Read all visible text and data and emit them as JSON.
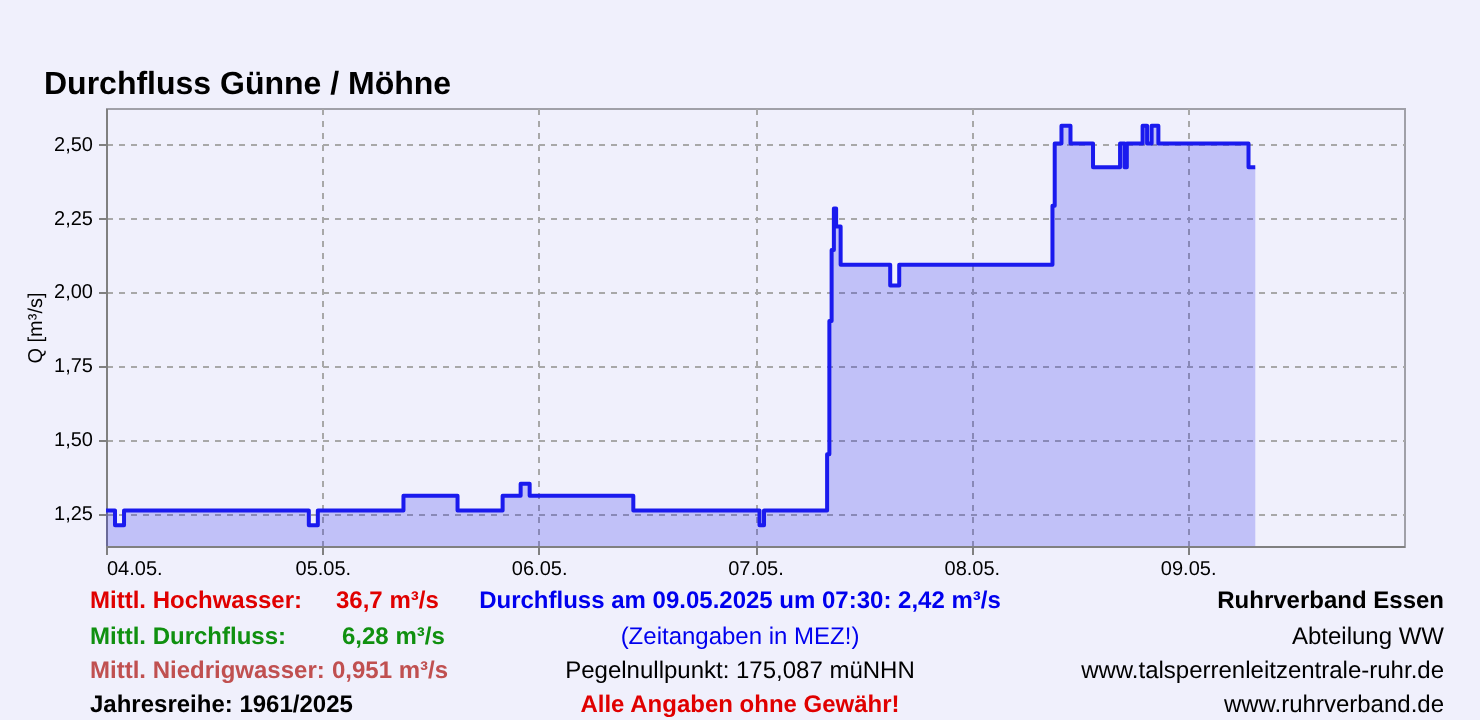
{
  "chart_data": {
    "type": "area",
    "title": "Durchfluss Günne / Möhne",
    "ylabel": "Q [m³/s]",
    "x": [
      "2025-05-04T00:00",
      "2025-05-04T01:00",
      "2025-05-04T01:00",
      "2025-05-04T02:00",
      "2025-05-04T02:00",
      "2025-05-04T22:30",
      "2025-05-04T22:30",
      "2025-05-04T23:30",
      "2025-05-04T23:30",
      "2025-05-05T09:00",
      "2025-05-05T09:00",
      "2025-05-05T15:00",
      "2025-05-05T15:00",
      "2025-05-05T20:00",
      "2025-05-05T20:00",
      "2025-05-05T22:00",
      "2025-05-05T22:00",
      "2025-05-05T23:00",
      "2025-05-05T23:00",
      "2025-05-06T10:30",
      "2025-05-06T10:30",
      "2025-05-07T00:30",
      "2025-05-07T00:30",
      "2025-05-07T01:00",
      "2025-05-07T01:00",
      "2025-05-07T07:45",
      "2025-05-07T08:00",
      "2025-05-07T08:00",
      "2025-05-07T08:15",
      "2025-05-07T08:15",
      "2025-05-07T08:30",
      "2025-05-07T08:30",
      "2025-05-07T08:45",
      "2025-05-07T08:45",
      "2025-05-07T09:00",
      "2025-05-07T09:00",
      "2025-05-07T09:30",
      "2025-05-07T09:30",
      "2025-05-07T15:00",
      "2025-05-07T15:00",
      "2025-05-07T16:00",
      "2025-05-07T16:00",
      "2025-05-08T09:00",
      "2025-05-08T09:00",
      "2025-05-08T09:15",
      "2025-05-08T09:15",
      "2025-05-08T10:00",
      "2025-05-08T10:00",
      "2025-05-08T11:00",
      "2025-05-08T11:00",
      "2025-05-08T13:30",
      "2025-05-08T13:30",
      "2025-05-08T16:30",
      "2025-05-08T16:30",
      "2025-05-08T17:00",
      "2025-05-08T17:00",
      "2025-05-08T17:15",
      "2025-05-08T17:15",
      "2025-05-08T19:00",
      "2025-05-08T19:00",
      "2025-05-08T19:30",
      "2025-05-08T19:30",
      "2025-05-08T20:00",
      "2025-05-08T20:00",
      "2025-05-08T20:45",
      "2025-05-08T20:45",
      "2025-05-09T06:45",
      "2025-05-09T06:45",
      "2025-05-09T07:30"
    ],
    "series": [
      {
        "color": "#1a1aee",
        "values": [
          1.26,
          1.26,
          1.21,
          1.21,
          1.26,
          1.26,
          1.21,
          1.21,
          1.26,
          1.26,
          1.31,
          1.31,
          1.26,
          1.26,
          1.31,
          1.31,
          1.35,
          1.35,
          1.31,
          1.31,
          1.26,
          1.26,
          1.21,
          1.21,
          1.26,
          1.26,
          1.26,
          1.45,
          1.45,
          1.9,
          1.9,
          2.14,
          2.14,
          2.28,
          2.28,
          2.22,
          2.22,
          2.09,
          2.09,
          2.02,
          2.02,
          2.09,
          2.09,
          2.29,
          2.29,
          2.5,
          2.5,
          2.56,
          2.56,
          2.5,
          2.5,
          2.42,
          2.42,
          2.5,
          2.5,
          2.42,
          2.42,
          2.5,
          2.5,
          2.56,
          2.56,
          2.5,
          2.5,
          2.56,
          2.56,
          2.5,
          2.5,
          2.42,
          2.42
        ]
      }
    ],
    "xlim": [
      "2025-05-04T00:00",
      "2025-05-10T00:00"
    ],
    "xticks": [
      {
        "value": "2025-05-04T00:00",
        "label": "04.05."
      },
      {
        "value": "2025-05-05T00:00",
        "label": "05.05."
      },
      {
        "value": "2025-05-06T00:00",
        "label": "06.05."
      },
      {
        "value": "2025-05-07T00:00",
        "label": "07.05."
      },
      {
        "value": "2025-05-08T00:00",
        "label": "08.05."
      },
      {
        "value": "2025-05-09T00:00",
        "label": "09.05."
      }
    ],
    "ylim": [
      1.14,
      2.62
    ],
    "yticks": [
      {
        "value": 1.25,
        "label": "1,25"
      },
      {
        "value": 1.5,
        "label": "1,50"
      },
      {
        "value": 1.75,
        "label": "1,75"
      },
      {
        "value": 2.0,
        "label": "2,00"
      },
      {
        "value": 2.25,
        "label": "2,25"
      },
      {
        "value": 2.5,
        "label": "2,50"
      }
    ],
    "grid": true,
    "line_style": "solid",
    "marker": "none",
    "annotations": [
      "Mittl. Hochwasser:",
      "36,7 m³/s",
      "Mittl. Durchfluss:",
      "6,28 m³/s",
      "Mittl. Niedrigwasser:",
      "0,951 m³/s",
      "Jahresreihe: 1961/2025",
      "Durchfluss am 09.05.2025 um 07:30: 2,42 m³/s",
      "(Zeitangaben in MEZ!)",
      "Pegelnullpunkt:  175,087 müNHN",
      "Alle Angaben ohne Gewähr!",
      "Ruhrverband Essen",
      "Abteilung WW",
      "www.talsperrenleitzentrale-ruhr.de",
      "www.ruhrverband.de"
    ]
  }
}
